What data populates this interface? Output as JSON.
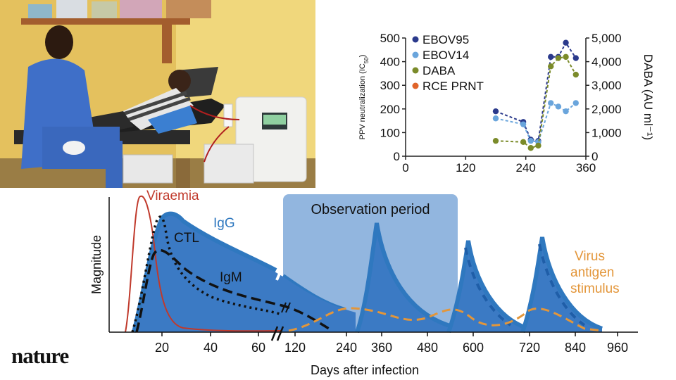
{
  "brand": {
    "logo_text": "nature"
  },
  "photo": {
    "alt_subject": "patient-donating-plasma-photo"
  },
  "chart_data": [
    {
      "type": "scatter",
      "title": "",
      "ylabel_left": "PPV neutralization (IC50)",
      "ylabel_right": "DABA (AU ml⁻¹)",
      "xlim": [
        0,
        360
      ],
      "ylim_left": [
        0,
        500
      ],
      "ylim_right": [
        0,
        5000
      ],
      "x_ticks": [
        "0",
        "120",
        "240",
        "360"
      ],
      "y_ticks_left": [
        "0",
        "100",
        "200",
        "300",
        "400",
        "500"
      ],
      "y_ticks_right": [
        "0",
        "1,000",
        "2,000",
        "3,000",
        "4,000",
        "5,000"
      ],
      "legend_position": "top-left",
      "series": [
        {
          "name": "EBOV95",
          "color": "#2b3a8c",
          "axis": "left",
          "x": [
            180,
            235,
            250,
            265,
            290,
            305,
            320,
            340
          ],
          "y": [
            190,
            145,
            70,
            65,
            420,
            420,
            480,
            415
          ]
        },
        {
          "name": "EBOV14",
          "color": "#6aa5dc",
          "axis": "left",
          "x": [
            180,
            235,
            250,
            265,
            290,
            305,
            320,
            340
          ],
          "y": [
            160,
            135,
            65,
            60,
            225,
            210,
            190,
            225
          ]
        },
        {
          "name": "DABA",
          "color": "#7b8b2a",
          "axis": "right",
          "x": [
            180,
            235,
            250,
            265,
            290,
            305,
            320,
            340
          ],
          "y": [
            650,
            600,
            350,
            450,
            3800,
            4150,
            4200,
            3450
          ]
        },
        {
          "name": "RCE PRNT",
          "color": "#e0642a",
          "axis": "left",
          "x": [],
          "y": []
        }
      ]
    },
    {
      "type": "line",
      "title": "",
      "xlabel": "Days after infection",
      "ylabel": "Magnitude",
      "x_ticks_early": [
        "20",
        "40",
        "60"
      ],
      "x_ticks_late": [
        "120",
        "240",
        "360",
        "480",
        "600",
        "720",
        "840",
        "960"
      ],
      "annotations": {
        "observation": "Observation period",
        "virus_line1": "Virus",
        "virus_line2": "antigen",
        "virus_line3": "stimulus"
      },
      "series": [
        {
          "name": "Viraemia",
          "color": "#c0392b"
        },
        {
          "name": "IgG",
          "color": "#2f78bf"
        },
        {
          "name": "CTL",
          "color": "#111111"
        },
        {
          "name": "IgM",
          "color": "#111111"
        }
      ]
    }
  ]
}
